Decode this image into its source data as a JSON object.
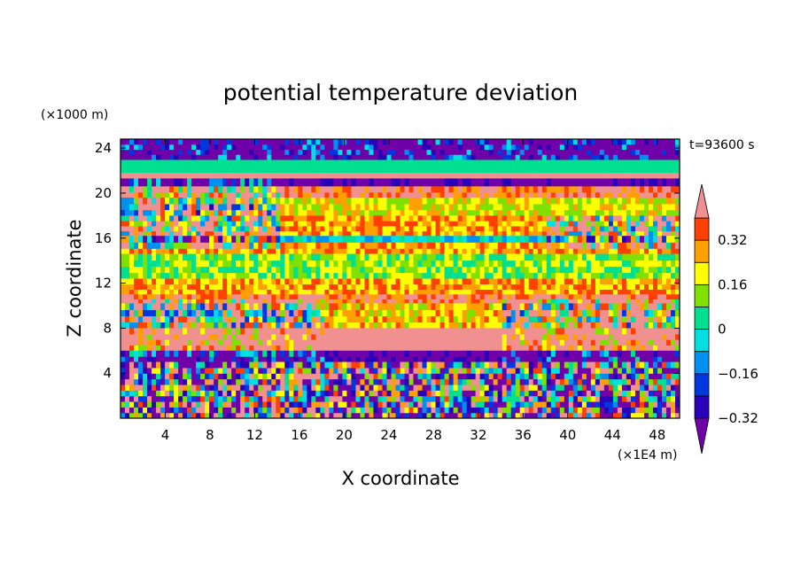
{
  "chart_data": {
    "type": "heatmap",
    "title": "potential temperature deviation",
    "xlabel": "X coordinate",
    "ylabel": "Z coordinate",
    "x_unit": "(×1E4 m)",
    "y_unit": "(×1000 m)",
    "time_label": "t=93600 s",
    "xlim": [
      0,
      50
    ],
    "ylim": [
      0,
      24.8
    ],
    "x_ticks": [
      "4",
      "8",
      "12",
      "16",
      "20",
      "24",
      "28",
      "32",
      "36",
      "40",
      "44",
      "48"
    ],
    "y_ticks": [
      "4",
      "8",
      "12",
      "16",
      "20",
      "24"
    ],
    "colorbar": {
      "levels": [
        -0.4,
        -0.32,
        -0.24,
        -0.16,
        -0.08,
        0,
        0.08,
        0.16,
        0.24,
        0.32,
        0.4
      ],
      "tick_labels": [
        "0.32",
        "0.16",
        "0",
        "−0.16",
        "−0.32"
      ],
      "colors": [
        "#7000a8",
        "#2a00b8",
        "#0038e0",
        "#0090f0",
        "#00e0e0",
        "#00e090",
        "#80e000",
        "#ffff00",
        "#ffa000",
        "#ff4000",
        "#f09090"
      ],
      "extend": "both"
    },
    "bands": [
      {
        "z": [
          23.0,
          24.8
        ],
        "value": -0.45
      },
      {
        "z": [
          21.3,
          21.8
        ],
        "value": 0.45
      },
      {
        "z": [
          20.6,
          21.3
        ],
        "value": -0.45
      },
      {
        "z": [
          19.6,
          20.6
        ],
        "value": 0.3
      },
      {
        "z": [
          18.0,
          19.6
        ],
        "value": 0.12
      },
      {
        "z": [
          16.2,
          18.0
        ],
        "value": 0.2
      },
      {
        "z": [
          15.6,
          16.2
        ],
        "value": -0.12
      },
      {
        "z": [
          14.6,
          15.6
        ],
        "value": 0.2
      },
      {
        "z": [
          12.4,
          14.6
        ],
        "value": 0.04
      },
      {
        "z": [
          11.0,
          12.4
        ],
        "value": 0.2
      },
      {
        "z": [
          10.2,
          11.0
        ],
        "value": 0.3
      },
      {
        "z": [
          8.0,
          10.2
        ],
        "value": 0.15
      },
      {
        "z": [
          6.0,
          8.0
        ],
        "value": 0.45
      },
      {
        "z": [
          5.0,
          6.0
        ],
        "value": -0.45
      },
      {
        "z": [
          0.0,
          5.0
        ],
        "value": -0.08
      }
    ]
  }
}
